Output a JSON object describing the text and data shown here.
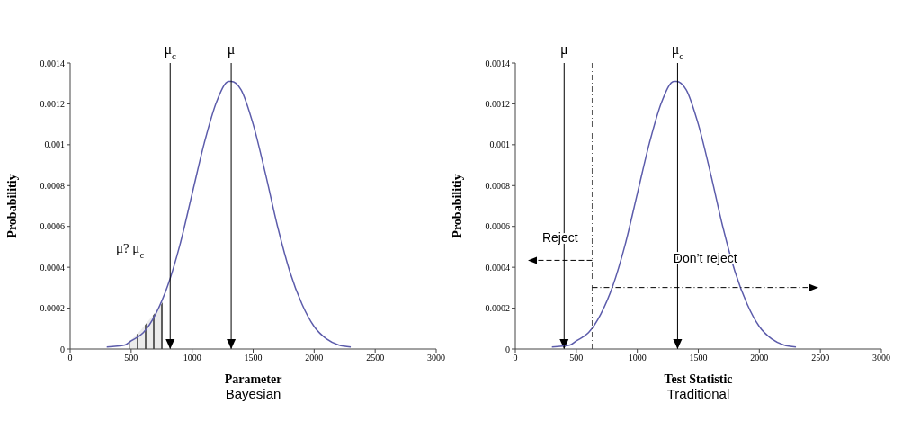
{
  "chart_data": [
    {
      "type": "line",
      "title": "Bayesian",
      "xlabel": "Parameter",
      "ylabel": "Probabilitiy",
      "x": [
        300,
        450,
        500,
        600,
        700,
        800,
        900,
        1000,
        1100,
        1200,
        1300,
        1320,
        1400,
        1500,
        1600,
        1700,
        1800,
        1900,
        2000,
        2100,
        2200,
        2300
      ],
      "series": [
        {
          "color": "#5c5cab",
          "values": [
            1e-05,
            2e-05,
            4e-05,
            8e-05,
            0.00017,
            0.00031,
            0.00051,
            0.00076,
            0.00101,
            0.00121,
            0.00131,
            0.00131,
            0.00127,
            0.0011,
            0.00086,
            0.0006,
            0.00038,
            0.00022,
            0.00011,
            5e-05,
            2e-05,
            1e-05
          ]
        },
        {
          "type": "area",
          "color": "#000000",
          "x": [
            490,
            560,
            630,
            700,
            760
          ],
          "values": [
            4e-05,
            8e-05,
            0.00013,
            0.00018,
            0.00023
          ]
        }
      ],
      "xlim": [
        0,
        3000
      ],
      "ylim": [
        0,
        0.0014
      ],
      "xticks": [
        0,
        500,
        1000,
        1500,
        2000,
        2500,
        3000
      ],
      "yticks": [
        0,
        0.0002,
        0.0004,
        0.0006,
        0.0008,
        0.001,
        0.0012,
        0.0014
      ],
      "ref_lines": [
        {
          "axis": "x",
          "value": 1320,
          "label": "μ",
          "color": "#000000",
          "line_style": "solid"
        },
        {
          "axis": "x",
          "value": 820,
          "label": "μ$_{c}$",
          "color": "#000000",
          "line_style": "solid"
        }
      ],
      "annotations": [
        "μ? μ$_{c}$"
      ]
    },
    {
      "type": "line",
      "title": "Traditional",
      "xlabel": "Test Statistic",
      "ylabel": "Probabilitiy",
      "x": [
        300,
        450,
        500,
        600,
        700,
        800,
        900,
        1000,
        1100,
        1200,
        1300,
        1320,
        1400,
        1500,
        1600,
        1700,
        1800,
        1900,
        2000,
        2100,
        2200,
        2300
      ],
      "series": [
        {
          "color": "#5c5cab",
          "values": [
            1e-05,
            2e-05,
            4e-05,
            8e-05,
            0.00017,
            0.00031,
            0.00051,
            0.00076,
            0.00101,
            0.00121,
            0.00131,
            0.00131,
            0.00127,
            0.0011,
            0.00086,
            0.0006,
            0.00038,
            0.00022,
            0.00011,
            5e-05,
            2e-05,
            1e-05
          ]
        }
      ],
      "xlim": [
        0,
        3000
      ],
      "ylim": [
        0,
        0.0014
      ],
      "xticks": [
        0,
        500,
        1000,
        1500,
        2000,
        2500,
        3000
      ],
      "yticks": [
        0,
        0.0002,
        0.0004,
        0.0006,
        0.0008,
        0.001,
        0.0012,
        0.0014
      ],
      "ref_lines": [
        {
          "axis": "x",
          "value": 1330,
          "label": "μ$_{c}$",
          "color": "#000000",
          "line_style": "solid"
        },
        {
          "axis": "x",
          "value": 400,
          "label": "μ",
          "color": "#000000",
          "line_style": "solid"
        },
        {
          "axis": "x",
          "value": 630,
          "color": "#555555",
          "line_style": "dashed"
        }
      ],
      "annotations": [
        "Reject",
        "Don’t reject"
      ]
    }
  ]
}
